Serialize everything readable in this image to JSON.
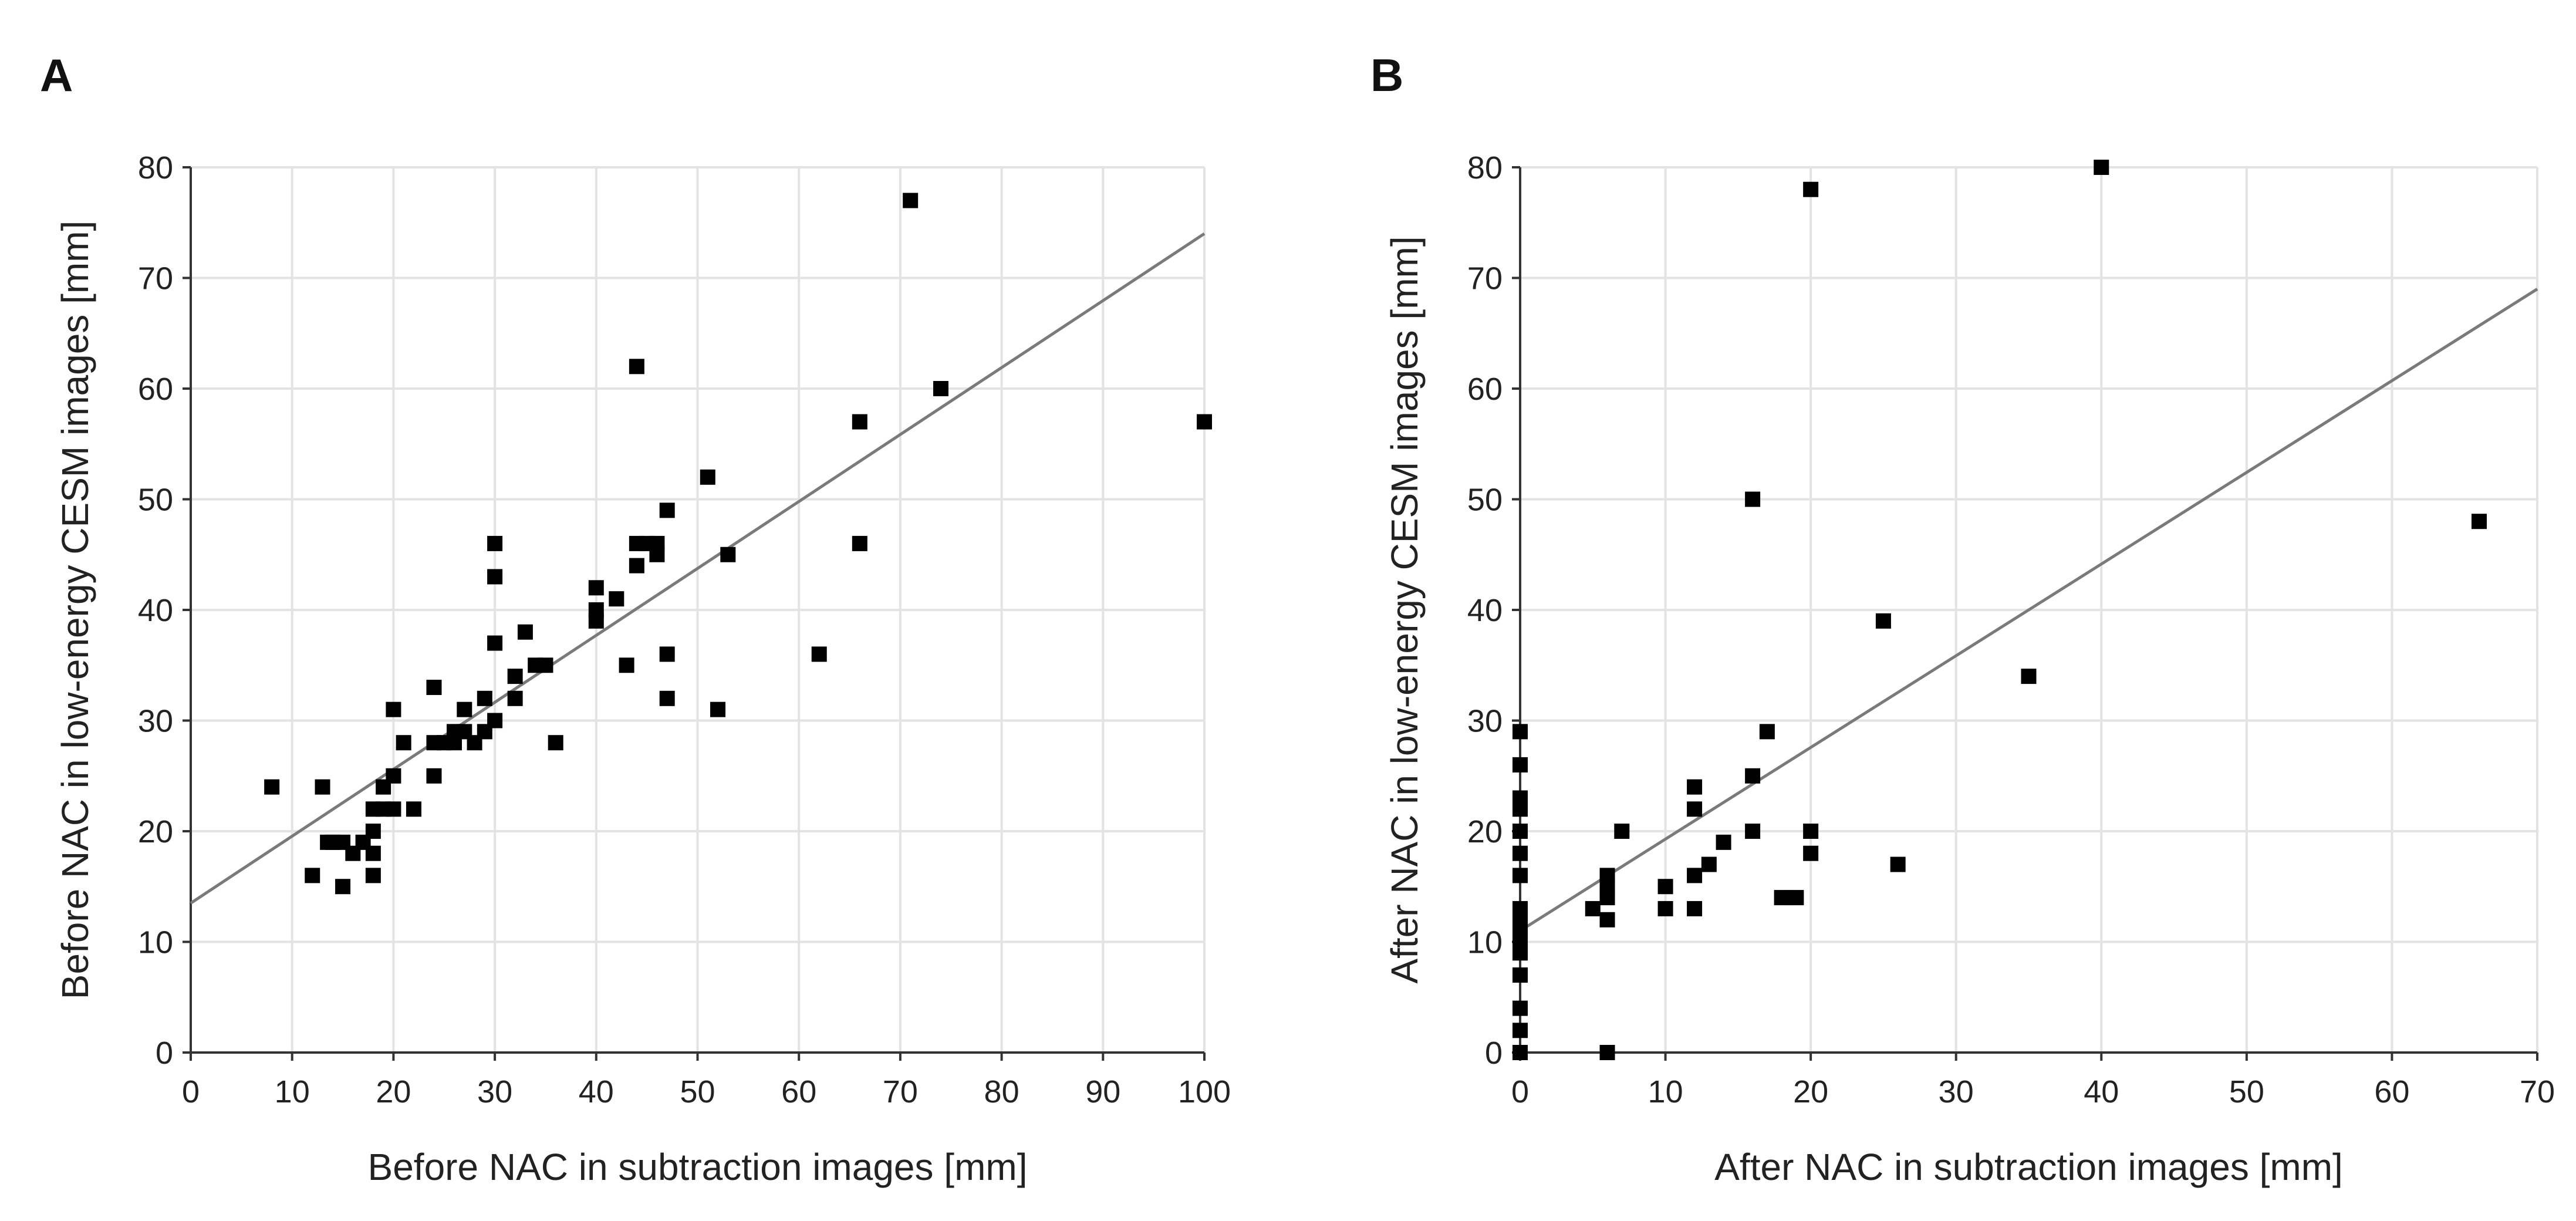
{
  "chart_data": [
    {
      "panel": "A",
      "type": "scatter",
      "xlabel": "Before NAC in subtraction images [mm]",
      "ylabel": "Before NAC in low-energy CESM images [mm]",
      "xlim": [
        0,
        100
      ],
      "ylim": [
        0,
        80
      ],
      "xticks": [
        0,
        10,
        20,
        30,
        40,
        50,
        60,
        70,
        80,
        90,
        100
      ],
      "yticks": [
        0,
        10,
        20,
        30,
        40,
        50,
        60,
        70,
        80
      ],
      "grid": true,
      "regression_line": {
        "x": [
          0,
          100
        ],
        "y": [
          13.5,
          74
        ]
      },
      "points": [
        [
          8,
          24
        ],
        [
          12,
          16
        ],
        [
          13,
          24
        ],
        [
          13.5,
          19
        ],
        [
          14,
          19
        ],
        [
          15,
          15
        ],
        [
          15,
          19
        ],
        [
          16,
          18
        ],
        [
          17,
          19
        ],
        [
          18,
          22
        ],
        [
          18,
          16
        ],
        [
          18,
          18
        ],
        [
          18,
          20
        ],
        [
          19,
          22
        ],
        [
          19,
          24
        ],
        [
          20,
          22
        ],
        [
          20,
          25
        ],
        [
          20,
          31
        ],
        [
          21,
          28
        ],
        [
          22,
          22
        ],
        [
          24,
          25
        ],
        [
          24,
          28
        ],
        [
          24,
          33
        ],
        [
          25,
          28
        ],
        [
          26,
          28
        ],
        [
          26,
          29
        ],
        [
          27,
          29
        ],
        [
          27,
          31
        ],
        [
          28,
          28
        ],
        [
          29,
          29
        ],
        [
          29,
          32
        ],
        [
          30,
          30
        ],
        [
          30,
          37
        ],
        [
          30,
          43
        ],
        [
          30,
          46
        ],
        [
          32,
          32
        ],
        [
          32,
          34
        ],
        [
          33,
          38
        ],
        [
          34,
          35
        ],
        [
          35,
          35
        ],
        [
          36,
          28
        ],
        [
          40,
          39
        ],
        [
          40,
          40
        ],
        [
          40,
          42
        ],
        [
          42,
          41
        ],
        [
          43,
          35
        ],
        [
          44,
          44
        ],
        [
          44,
          46
        ],
        [
          44,
          62
        ],
        [
          45,
          46
        ],
        [
          46,
          45
        ],
        [
          46,
          46
        ],
        [
          47,
          49
        ],
        [
          47,
          36
        ],
        [
          47,
          32
        ],
        [
          51,
          52
        ],
        [
          52,
          31
        ],
        [
          53,
          45
        ],
        [
          62,
          36
        ],
        [
          66,
          46
        ],
        [
          66,
          57
        ],
        [
          71,
          77
        ],
        [
          74,
          60
        ],
        [
          100,
          57
        ]
      ]
    },
    {
      "panel": "B",
      "type": "scatter",
      "xlabel": "After NAC in subtraction images [mm]",
      "ylabel": "After NAC in low-energy CESM images [mm]",
      "xlim": [
        0,
        70
      ],
      "ylim": [
        0,
        80
      ],
      "xticks": [
        0,
        10,
        20,
        30,
        40,
        50,
        60,
        70
      ],
      "yticks": [
        0,
        10,
        20,
        30,
        40,
        50,
        60,
        70,
        80
      ],
      "grid": true,
      "regression_line": {
        "x": [
          0,
          70
        ],
        "y": [
          11,
          69
        ]
      },
      "points": [
        [
          0,
          0
        ],
        [
          0,
          2
        ],
        [
          0,
          4
        ],
        [
          0,
          7
        ],
        [
          0,
          9
        ],
        [
          0,
          10
        ],
        [
          0,
          11
        ],
        [
          0,
          12
        ],
        [
          0,
          13
        ],
        [
          0,
          16
        ],
        [
          0,
          18
        ],
        [
          0,
          20
        ],
        [
          0,
          22
        ],
        [
          0,
          23
        ],
        [
          0,
          26
        ],
        [
          0,
          29
        ],
        [
          5,
          13
        ],
        [
          6,
          12
        ],
        [
          6,
          14
        ],
        [
          6,
          15
        ],
        [
          6,
          16
        ],
        [
          6,
          0
        ],
        [
          7,
          20
        ],
        [
          10,
          13
        ],
        [
          10,
          15
        ],
        [
          12,
          13
        ],
        [
          12,
          16
        ],
        [
          12,
          22
        ],
        [
          12,
          24
        ],
        [
          13,
          17
        ],
        [
          14,
          19
        ],
        [
          16,
          20
        ],
        [
          16,
          25
        ],
        [
          16,
          50
        ],
        [
          17,
          29
        ],
        [
          18,
          14
        ],
        [
          19,
          14
        ],
        [
          20,
          18
        ],
        [
          20,
          20
        ],
        [
          20,
          78
        ],
        [
          25,
          39
        ],
        [
          26,
          17
        ],
        [
          35,
          34
        ],
        [
          40,
          80
        ],
        [
          66,
          48
        ]
      ]
    }
  ]
}
